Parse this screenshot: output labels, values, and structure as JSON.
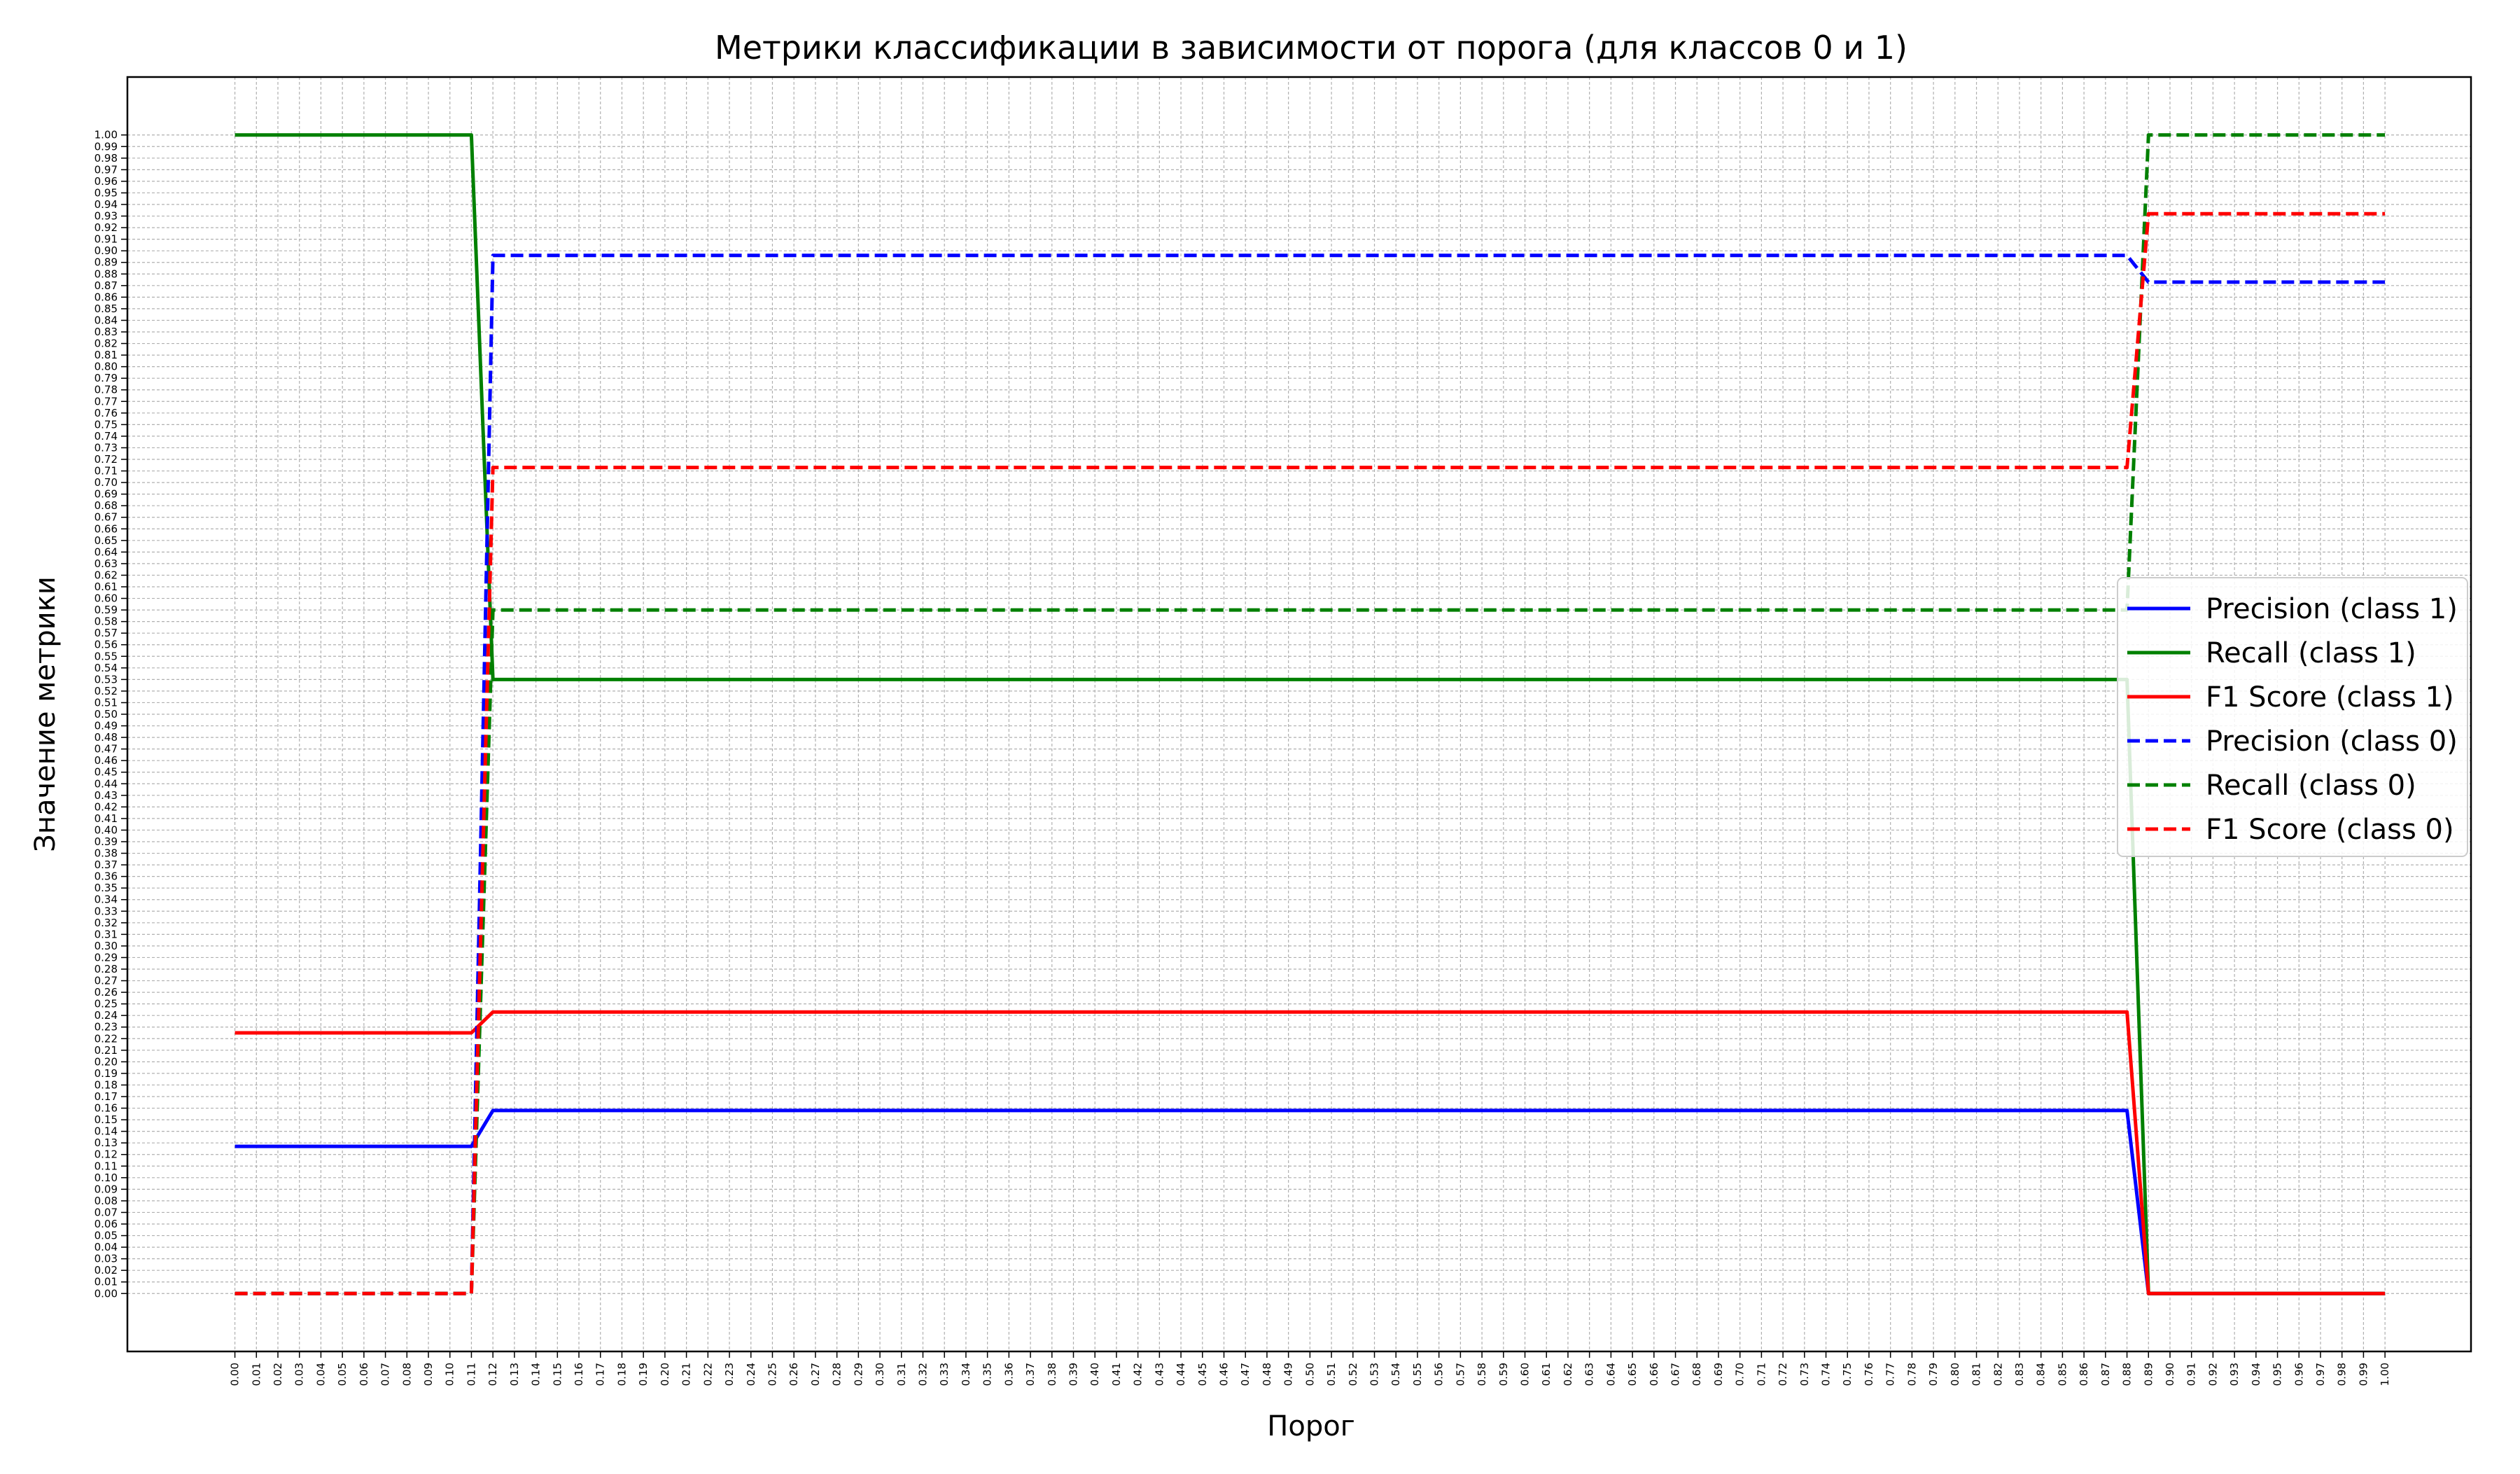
{
  "chart_data": {
    "type": "line",
    "title": "Метрики классификации в зависимости от порога (для классов 0 и 1)",
    "xlabel": "Порог",
    "ylabel": "Значение метрики",
    "xlim": [
      -0.05,
      1.04
    ],
    "ylim": [
      -0.05,
      1.05
    ],
    "x_ticks": {
      "start": 0,
      "end": 1,
      "step": 0.01,
      "decimals": 2
    },
    "y_ticks": {
      "start": 0,
      "end": 1,
      "step": 0.01,
      "decimals": 2
    },
    "grid": true,
    "legend_position": "center-right",
    "colors": {
      "blue": "#0000ff",
      "green": "#008000",
      "red": "#ff0000",
      "grid": "#b0b0b0"
    },
    "series": [
      {
        "name": "Precision (class 1)",
        "color": "#0000ff",
        "style": "solid",
        "x": [
          0,
          0.11,
          0.12,
          0.88,
          0.89,
          1.0
        ],
        "y": [
          0.127,
          0.127,
          0.158,
          0.158,
          0.0,
          0.0
        ]
      },
      {
        "name": "Recall (class 1)",
        "color": "#008000",
        "style": "solid",
        "x": [
          0,
          0.11,
          0.12,
          0.88,
          0.89,
          1.0
        ],
        "y": [
          1.0,
          1.0,
          0.53,
          0.53,
          0.0,
          0.0
        ]
      },
      {
        "name": "F1 Score (class 1)",
        "color": "#ff0000",
        "style": "solid",
        "x": [
          0,
          0.11,
          0.12,
          0.88,
          0.89,
          1.0
        ],
        "y": [
          0.225,
          0.225,
          0.243,
          0.243,
          0.0,
          0.0
        ]
      },
      {
        "name": "Precision (class 0)",
        "color": "#0000ff",
        "style": "dashed",
        "x": [
          0,
          0.11,
          0.12,
          0.88,
          0.89,
          1.0
        ],
        "y": [
          0.0,
          0.0,
          0.896,
          0.896,
          0.873,
          0.873
        ]
      },
      {
        "name": "Recall (class 0)",
        "color": "#008000",
        "style": "dashed",
        "x": [
          0,
          0.11,
          0.12,
          0.88,
          0.89,
          1.0
        ],
        "y": [
          0.0,
          0.0,
          0.59,
          0.59,
          1.0,
          1.0
        ]
      },
      {
        "name": "F1 Score (class 0)",
        "color": "#ff0000",
        "style": "dashed",
        "x": [
          0,
          0.11,
          0.12,
          0.88,
          0.89,
          1.0
        ],
        "y": [
          0.0,
          0.0,
          0.713,
          0.713,
          0.932,
          0.932
        ]
      }
    ]
  }
}
